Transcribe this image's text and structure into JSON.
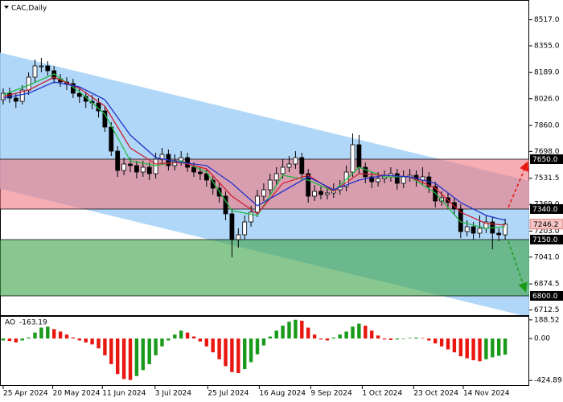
{
  "chart_data": {
    "type": "candlestick",
    "title": "CAC,Daily",
    "candles": [
      [
        8020,
        8090,
        7990,
        8060
      ],
      [
        8060,
        8095,
        8000,
        8030
      ],
      [
        8030,
        8060,
        7970,
        8010
      ],
      [
        8010,
        8110,
        7990,
        8080
      ],
      [
        8080,
        8190,
        8050,
        8160
      ],
      [
        8160,
        8270,
        8130,
        8230
      ],
      [
        8230,
        8280,
        8190,
        8230
      ],
      [
        8230,
        8260,
        8170,
        8200
      ],
      [
        8200,
        8230,
        8120,
        8150
      ],
      [
        8150,
        8180,
        8100,
        8130
      ],
      [
        8130,
        8160,
        8080,
        8120
      ],
      [
        8120,
        8150,
        8030,
        8060
      ],
      [
        8060,
        8100,
        8000,
        8040
      ],
      [
        8040,
        8070,
        7970,
        8010
      ],
      [
        8010,
        8050,
        7960,
        8000
      ],
      [
        8000,
        8030,
        7910,
        7950
      ],
      [
        7950,
        7980,
        7820,
        7850
      ],
      [
        7850,
        7880,
        7670,
        7700
      ],
      [
        7700,
        7730,
        7540,
        7580
      ],
      [
        7580,
        7660,
        7550,
        7620
      ],
      [
        7620,
        7660,
        7570,
        7610
      ],
      [
        7610,
        7640,
        7530,
        7570
      ],
      [
        7570,
        7640,
        7540,
        7600
      ],
      [
        7600,
        7630,
        7520,
        7560
      ],
      [
        7560,
        7690,
        7530,
        7650
      ],
      [
        7650,
        7720,
        7620,
        7680
      ],
      [
        7680,
        7710,
        7580,
        7610
      ],
      [
        7610,
        7680,
        7580,
        7640
      ],
      [
        7640,
        7700,
        7610,
        7660
      ],
      [
        7660,
        7690,
        7570,
        7600
      ],
      [
        7600,
        7630,
        7540,
        7570
      ],
      [
        7570,
        7600,
        7520,
        7560
      ],
      [
        7560,
        7590,
        7480,
        7520
      ],
      [
        7520,
        7550,
        7430,
        7470
      ],
      [
        7470,
        7500,
        7380,
        7420
      ],
      [
        7420,
        7450,
        7270,
        7310
      ],
      [
        7310,
        7340,
        7040,
        7150
      ],
      [
        7150,
        7220,
        7100,
        7180
      ],
      [
        7180,
        7300,
        7150,
        7260
      ],
      [
        7260,
        7360,
        7230,
        7320
      ],
      [
        7320,
        7460,
        7290,
        7420
      ],
      [
        7420,
        7500,
        7390,
        7460
      ],
      [
        7460,
        7560,
        7430,
        7520
      ],
      [
        7520,
        7600,
        7490,
        7560
      ],
      [
        7560,
        7650,
        7530,
        7600
      ],
      [
        7600,
        7670,
        7570,
        7620
      ],
      [
        7620,
        7700,
        7590,
        7660
      ],
      [
        7660,
        7690,
        7530,
        7560
      ],
      [
        7560,
        7590,
        7380,
        7420
      ],
      [
        7420,
        7490,
        7390,
        7450
      ],
      [
        7450,
        7480,
        7400,
        7430
      ],
      [
        7430,
        7480,
        7400,
        7440
      ],
      [
        7440,
        7500,
        7410,
        7460
      ],
      [
        7460,
        7520,
        7430,
        7480
      ],
      [
        7480,
        7610,
        7450,
        7570
      ],
      [
        7570,
        7810,
        7540,
        7740
      ],
      [
        7740,
        7800,
        7560,
        7600
      ],
      [
        7600,
        7630,
        7500,
        7540
      ],
      [
        7540,
        7570,
        7470,
        7510
      ],
      [
        7510,
        7570,
        7480,
        7530
      ],
      [
        7530,
        7580,
        7500,
        7540
      ],
      [
        7540,
        7600,
        7510,
        7560
      ],
      [
        7560,
        7590,
        7460,
        7500
      ],
      [
        7500,
        7580,
        7470,
        7540
      ],
      [
        7540,
        7590,
        7510,
        7550
      ],
      [
        7550,
        7580,
        7480,
        7520
      ],
      [
        7520,
        7600,
        7490,
        7540
      ],
      [
        7540,
        7570,
        7440,
        7480
      ],
      [
        7480,
        7510,
        7350,
        7390
      ],
      [
        7390,
        7450,
        7360,
        7410
      ],
      [
        7410,
        7440,
        7340,
        7380
      ],
      [
        7380,
        7410,
        7300,
        7340
      ],
      [
        7340,
        7370,
        7160,
        7200
      ],
      [
        7200,
        7270,
        7170,
        7230
      ],
      [
        7230,
        7260,
        7150,
        7190
      ],
      [
        7190,
        7300,
        7160,
        7220
      ],
      [
        7220,
        7300,
        7190,
        7260
      ],
      [
        7260,
        7290,
        7090,
        7190
      ],
      [
        7190,
        7220,
        7140,
        7180
      ],
      [
        7180,
        7280,
        7150,
        7246.2
      ]
    ],
    "series": [
      {
        "color": "#22bb44",
        "x": [
          0,
          4,
          8,
          12,
          16,
          20,
          24,
          28,
          32,
          36,
          40,
          44,
          48,
          52,
          56,
          60,
          64,
          68,
          72,
          76,
          79
        ],
        "values": [
          8050,
          8110,
          8180,
          8070,
          7930,
          7640,
          7610,
          7640,
          7570,
          7330,
          7300,
          7550,
          7520,
          7450,
          7600,
          7540,
          7540,
          7440,
          7260,
          7220,
          7230
        ]
      },
      {
        "color": "#cc2233",
        "x": [
          0,
          4,
          8,
          12,
          16,
          20,
          24,
          28,
          32,
          36,
          40,
          44,
          48,
          52,
          56,
          60,
          64,
          68,
          72,
          76,
          79
        ],
        "values": [
          8040,
          8080,
          8160,
          8090,
          7980,
          7720,
          7620,
          7630,
          7590,
          7420,
          7310,
          7500,
          7550,
          7450,
          7560,
          7550,
          7540,
          7470,
          7320,
          7250,
          7240
        ]
      },
      {
        "color": "#2233cc",
        "x": [
          0,
          4,
          8,
          12,
          16,
          20,
          24,
          28,
          32,
          36,
          40,
          44,
          48,
          52,
          56,
          60,
          64,
          68,
          72,
          76,
          79
        ],
        "values": [
          8030,
          8060,
          8130,
          8100,
          8020,
          7800,
          7660,
          7630,
          7610,
          7500,
          7360,
          7450,
          7540,
          7460,
          7520,
          7550,
          7540,
          7500,
          7380,
          7300,
          7270
        ]
      }
    ],
    "channel": {
      "upper": [
        8313,
        7515
      ],
      "lower": [
        7466,
        6668
      ],
      "color": "#a9d3f7"
    },
    "zones": [
      {
        "top": 7650,
        "bottom": 7340,
        "color": "#f07a84"
      },
      {
        "top": 7150,
        "bottom": 6800,
        "color": "#3fa54a"
      }
    ],
    "levels": [
      {
        "value": 7650,
        "label": "7650.0"
      },
      {
        "value": 7340,
        "label": "7340.0"
      },
      {
        "value": 7150,
        "label": "7150.0"
      },
      {
        "value": 6800,
        "label": "6800.0"
      }
    ],
    "ylim": [
      6680,
      8640
    ],
    "yticks": [
      {
        "value": 8517,
        "label": "8517.0"
      },
      {
        "value": 8355,
        "label": "8355.0"
      },
      {
        "value": 8189,
        "label": "8189.0"
      },
      {
        "value": 8026,
        "label": "8026.0"
      },
      {
        "value": 7860,
        "label": "7860.0"
      },
      {
        "value": 7698,
        "label": "7698.0"
      },
      7531.5,
      {
        "value": 7369,
        "label": "7369.0"
      },
      {
        "value": 7203,
        "label": "7203.0"
      },
      {
        "value": 7041,
        "label": "7041.0"
      },
      6874.5,
      6712.5
    ],
    "xticks": [
      {
        "value": 0,
        "label": "25 Apr 2024"
      },
      {
        "value": 7.8,
        "label": "20 May 2024"
      },
      {
        "value": 15.6,
        "label": "11 Jun 2024"
      },
      {
        "value": 23.9,
        "label": "3 Jul 2024"
      },
      {
        "value": 32.2,
        "label": "25 Jul 2024"
      },
      {
        "value": 40.3,
        "label": "16 Aug 2024"
      },
      {
        "value": 48.4,
        "label": "9 Sep 2024"
      },
      {
        "value": 56.5,
        "label": "1 Oct 2024"
      },
      {
        "value": 64.6,
        "label": "23 Oct 2024"
      },
      {
        "value": 72.4,
        "label": "14 Nov 2024"
      }
    ],
    "ao": {
      "name": "AO",
      "up_color": "#1a9a1a",
      "down_color": "#e8170f",
      "values": [
        -20,
        -25,
        -40,
        -20,
        10,
        60,
        110,
        120,
        95,
        70,
        40,
        10,
        -20,
        -40,
        -60,
        -100,
        -170,
        -260,
        -360,
        -410,
        -420,
        -380,
        -320,
        -260,
        -170,
        -80,
        -20,
        40,
        80,
        60,
        20,
        -30,
        -80,
        -140,
        -210,
        -280,
        -340,
        -350,
        -310,
        -240,
        -160,
        -70,
        20,
        80,
        130,
        170,
        190,
        180,
        110,
        40,
        -10,
        -20,
        10,
        40,
        70,
        120,
        150,
        130,
        80,
        30,
        -10,
        -15,
        -10,
        -5,
        5,
        10,
        5,
        -20,
        -50,
        -80,
        -110,
        -140,
        -180,
        -200,
        -220,
        -230,
        -210,
        -190,
        -175,
        -163.19
      ],
      "ylim": [
        -480,
        228
      ],
      "yticks": [
        188.52,
        {
          "value": 0,
          "label": "0.00"
        },
        -424.89
      ]
    }
  }
}
